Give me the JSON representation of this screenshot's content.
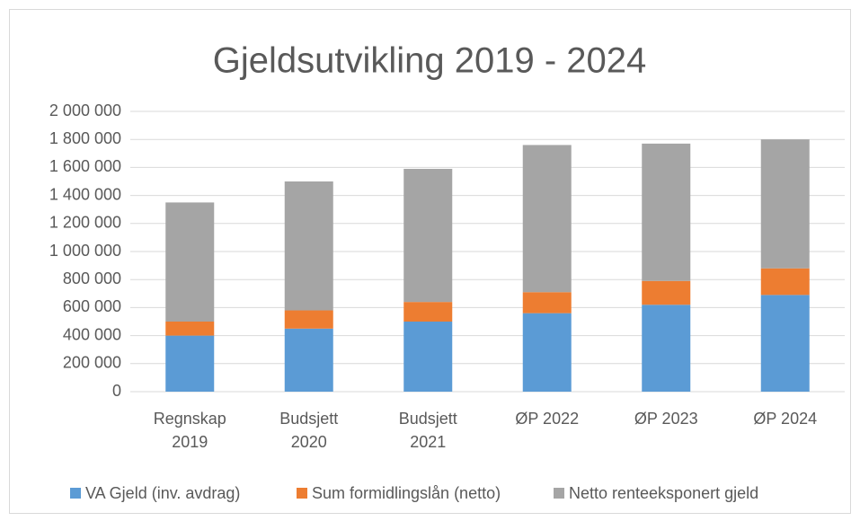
{
  "chart_data": {
    "type": "stacked-bar",
    "title": "Gjeldsutvikling 2019 - 2024",
    "categories": [
      "Regnskap 2019",
      "Budsjett 2020",
      "Budsjett 2021",
      "ØP 2022",
      "ØP 2023",
      "ØP 2024"
    ],
    "series": [
      {
        "name": "VA Gjeld (inv. avdrag)",
        "color": "#5b9bd5",
        "values": [
          400000,
          450000,
          500000,
          560000,
          620000,
          690000
        ]
      },
      {
        "name": "Sum formidlingslån (netto)",
        "color": "#ed7d31",
        "values": [
          100000,
          130000,
          140000,
          150000,
          170000,
          190000
        ]
      },
      {
        "name": "Netto renteeksponert gjeld",
        "color": "#a5a5a5",
        "values": [
          850000,
          920000,
          950000,
          1050000,
          980000,
          920000
        ]
      }
    ],
    "ylim": [
      0,
      2000000
    ],
    "yticks": [
      0,
      {
        "value": 200000,
        "label": "200 000"
      },
      {
        "value": 400000,
        "label": "400 000"
      },
      {
        "value": 600000,
        "label": "600 000"
      },
      {
        "value": 800000,
        "label": "800 000"
      },
      {
        "value": 1000000,
        "label": "1 000 000"
      },
      {
        "value": 1200000,
        "label": "1 200 000"
      },
      {
        "value": 1400000,
        "label": "1 400 000"
      },
      {
        "value": 1600000,
        "label": "1 600 000"
      },
      {
        "value": 1800000,
        "label": "1 800 000"
      },
      {
        "value": 2000000,
        "label": "2 000 000"
      }
    ],
    "grid": true,
    "legend": "bottom"
  }
}
